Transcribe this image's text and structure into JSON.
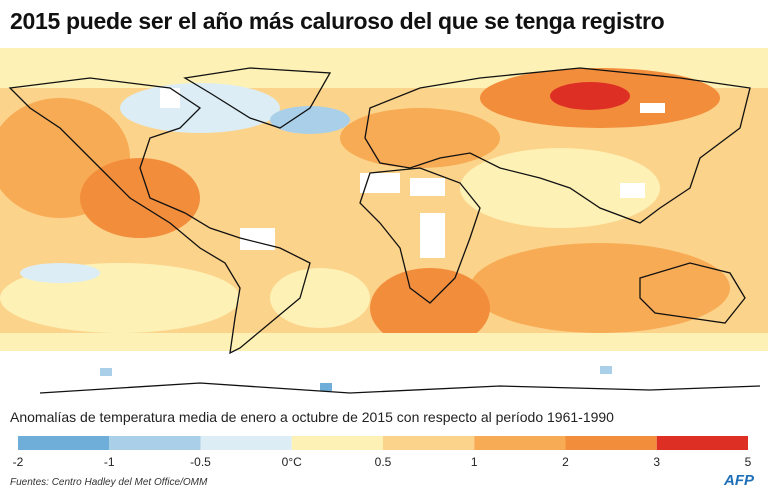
{
  "header": {
    "title": "2015 puede ser el año más caluroso del que se tenga registro"
  },
  "subtitle": "Anomalías de temperatura media de enero a octubre de 2015 con respecto al período 1961-1990",
  "legend": {
    "ticks": [
      "-2",
      "-1",
      "-0.5",
      "0°C",
      "0.5",
      "1",
      "2",
      "3",
      "5"
    ],
    "colors": [
      "#6eaed8",
      "#a9d0e8",
      "#dcedf6",
      "#fdf1b6",
      "#fcd38a",
      "#f8ab55",
      "#f28d3c",
      "#de2f25"
    ]
  },
  "source": "Fuentes: Centro Hadley del Met Office/OMM",
  "logo": "AFP"
}
